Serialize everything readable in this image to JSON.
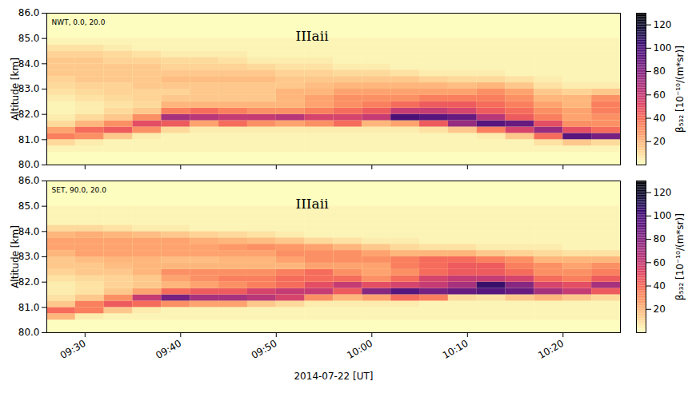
{
  "chart_data": [
    {
      "type": "heatmap",
      "panel_label": "NWT, 0.0, 20.0",
      "annotation": "IIIaii",
      "ylabel": "Altitude [km]",
      "tick_labels": "y",
      "xlim": [
        "2014-07-22T09:26:00Z",
        "2014-07-22T10:26:00Z"
      ],
      "xticks": [
        {
          "value": "2014-07-22T09:30:00Z",
          "label": "09:30"
        },
        {
          "value": "2014-07-22T09:40:00Z",
          "label": "09:40"
        },
        {
          "value": "2014-07-22T09:50:00Z",
          "label": "09:50"
        },
        {
          "value": "2014-07-22T10:00:00Z",
          "label": "10:00"
        },
        {
          "value": "2014-07-22T10:10:00Z",
          "label": "10:10"
        },
        {
          "value": "2014-07-22T10:20:00Z",
          "label": "10:20"
        }
      ],
      "ylim": [
        80,
        86
      ],
      "yticks": [
        80,
        81,
        82,
        83,
        84,
        85,
        86
      ],
      "colorbar": {
        "label": "β₅₃₂ [10⁻¹⁰/(m*sr)]",
        "lim": [
          0,
          130
        ],
        "ticks": [
          20,
          40,
          60,
          80,
          100,
          120
        ]
      },
      "cells": {
        "x_edges": [
          "2014-07-22T09:26:00Z",
          "2014-07-22T09:29:00Z",
          "2014-07-22T09:32:00Z",
          "2014-07-22T09:35:00Z",
          "2014-07-22T09:38:00Z",
          "2014-07-22T09:41:00Z",
          "2014-07-22T09:44:00Z",
          "2014-07-22T09:47:00Z",
          "2014-07-22T09:50:00Z",
          "2014-07-22T09:53:00Z",
          "2014-07-22T09:56:00Z",
          "2014-07-22T09:59:00Z",
          "2014-07-22T10:02:00Z",
          "2014-07-22T10:05:00Z",
          "2014-07-22T10:08:00Z",
          "2014-07-22T10:11:00Z",
          "2014-07-22T10:14:00Z",
          "2014-07-22T10:17:00Z",
          "2014-07-22T10:20:00Z",
          "2014-07-22T10:23:00Z",
          "2014-07-22T10:26:00Z"
        ],
        "y_edges": [
          80.5,
          80.75,
          81.0,
          81.25,
          81.5,
          81.75,
          82.0,
          82.25,
          82.5,
          82.75,
          83.0,
          83.25,
          83.5,
          83.75,
          84.0,
          84.25,
          84.5,
          84.75,
          85.0
        ],
        "values": [
          [
            3,
            3,
            3,
            3,
            3,
            3,
            3,
            3,
            3,
            3,
            3,
            3,
            3,
            3,
            3,
            3,
            3,
            3,
            3,
            3
          ],
          [
            10,
            5,
            3,
            3,
            3,
            3,
            3,
            3,
            3,
            3,
            3,
            3,
            3,
            3,
            3,
            3,
            3,
            8,
            15,
            10
          ],
          [
            35,
            30,
            15,
            5,
            3,
            3,
            3,
            3,
            3,
            3,
            3,
            3,
            3,
            3,
            3,
            5,
            15,
            40,
            95,
            85
          ],
          [
            25,
            40,
            45,
            30,
            10,
            5,
            5,
            5,
            5,
            5,
            5,
            5,
            5,
            8,
            15,
            35,
            55,
            75,
            50,
            40
          ],
          [
            10,
            20,
            30,
            50,
            45,
            25,
            40,
            30,
            25,
            30,
            40,
            20,
            25,
            45,
            75,
            95,
            90,
            50,
            30,
            30
          ],
          [
            5,
            10,
            15,
            30,
            70,
            65,
            60,
            60,
            65,
            55,
            55,
            60,
            100,
            95,
            90,
            65,
            45,
            35,
            25,
            30
          ],
          [
            3,
            5,
            10,
            15,
            35,
            40,
            35,
            30,
            30,
            35,
            40,
            45,
            60,
            60,
            55,
            45,
            40,
            30,
            25,
            35
          ],
          [
            3,
            5,
            8,
            10,
            20,
            20,
            20,
            20,
            20,
            25,
            30,
            35,
            40,
            45,
            45,
            40,
            35,
            25,
            20,
            35
          ],
          [
            5,
            8,
            10,
            12,
            15,
            15,
            15,
            15,
            20,
            25,
            30,
            30,
            30,
            35,
            35,
            35,
            30,
            20,
            20,
            30
          ],
          [
            8,
            10,
            12,
            12,
            12,
            15,
            15,
            15,
            20,
            20,
            25,
            25,
            25,
            25,
            25,
            30,
            25,
            15,
            12,
            15
          ],
          [
            10,
            12,
            12,
            15,
            15,
            15,
            15,
            15,
            15,
            18,
            20,
            20,
            20,
            20,
            18,
            20,
            15,
            8,
            5,
            5
          ],
          [
            12,
            15,
            15,
            15,
            18,
            18,
            18,
            18,
            15,
            15,
            15,
            15,
            15,
            12,
            10,
            10,
            8,
            5,
            3,
            3
          ],
          [
            15,
            15,
            15,
            15,
            15,
            15,
            15,
            15,
            12,
            12,
            10,
            10,
            8,
            5,
            5,
            5,
            3,
            3,
            3,
            3
          ],
          [
            15,
            15,
            15,
            15,
            12,
            12,
            12,
            10,
            8,
            8,
            5,
            5,
            3,
            3,
            3,
            3,
            3,
            3,
            3,
            3
          ],
          [
            15,
            15,
            12,
            12,
            10,
            10,
            8,
            5,
            5,
            5,
            3,
            3,
            3,
            3,
            3,
            3,
            3,
            3,
            3,
            3
          ],
          [
            12,
            12,
            10,
            8,
            5,
            5,
            5,
            3,
            3,
            3,
            3,
            3,
            3,
            3,
            3,
            3,
            3,
            3,
            3,
            3
          ],
          [
            8,
            8,
            5,
            3,
            3,
            3,
            3,
            3,
            3,
            3,
            3,
            3,
            3,
            3,
            3,
            3,
            3,
            3,
            3,
            3
          ],
          [
            3,
            3,
            3,
            3,
            3,
            3,
            3,
            3,
            3,
            3,
            3,
            3,
            3,
            3,
            3,
            3,
            3,
            3,
            3,
            3
          ]
        ]
      }
    },
    {
      "type": "heatmap",
      "panel_label": "SET, 90.0, 20.0",
      "annotation": "IIIaii",
      "ylabel": "Altitude [km]",
      "xlabel": "2014-07-22 [UT]",
      "xlim": [
        "2014-07-22T09:26:00Z",
        "2014-07-22T10:26:00Z"
      ],
      "xticks": [
        {
          "value": "2014-07-22T09:30:00Z",
          "label": "09:30"
        },
        {
          "value": "2014-07-22T09:40:00Z",
          "label": "09:40"
        },
        {
          "value": "2014-07-22T09:50:00Z",
          "label": "09:50"
        },
        {
          "value": "2014-07-22T10:00:00Z",
          "label": "10:00"
        },
        {
          "value": "2014-07-22T10:10:00Z",
          "label": "10:10"
        },
        {
          "value": "2014-07-22T10:20:00Z",
          "label": "10:20"
        }
      ],
      "ylim": [
        80,
        86
      ],
      "yticks": [
        80,
        81,
        82,
        83,
        84,
        85,
        86
      ],
      "colorbar": {
        "label": "β₅₃₂ [10⁻¹⁰/(m*sr)]",
        "lim": [
          0,
          130
        ],
        "ticks": [
          20,
          40,
          60,
          80,
          100,
          120
        ]
      },
      "cells": {
        "x_edges": [
          "2014-07-22T09:26:00Z",
          "2014-07-22T09:29:00Z",
          "2014-07-22T09:32:00Z",
          "2014-07-22T09:35:00Z",
          "2014-07-22T09:38:00Z",
          "2014-07-22T09:41:00Z",
          "2014-07-22T09:44:00Z",
          "2014-07-22T09:47:00Z",
          "2014-07-22T09:50:00Z",
          "2014-07-22T09:53:00Z",
          "2014-07-22T09:56:00Z",
          "2014-07-22T09:59:00Z",
          "2014-07-22T10:02:00Z",
          "2014-07-22T10:05:00Z",
          "2014-07-22T10:08:00Z",
          "2014-07-22T10:11:00Z",
          "2014-07-22T10:14:00Z",
          "2014-07-22T10:17:00Z",
          "2014-07-22T10:20:00Z",
          "2014-07-22T10:23:00Z",
          "2014-07-22T10:26:00Z"
        ],
        "y_edges": [
          80.5,
          80.75,
          81.0,
          81.25,
          81.5,
          81.75,
          82.0,
          82.25,
          82.5,
          82.75,
          83.0,
          83.25,
          83.5,
          83.75,
          84.0,
          84.25,
          84.5,
          84.75,
          85.0
        ],
        "values": [
          [
            20,
            5,
            3,
            3,
            3,
            3,
            3,
            3,
            3,
            3,
            3,
            3,
            3,
            3,
            3,
            3,
            3,
            3,
            3,
            3
          ],
          [
            40,
            35,
            15,
            5,
            3,
            3,
            3,
            3,
            3,
            3,
            3,
            3,
            3,
            3,
            3,
            3,
            3,
            3,
            3,
            3
          ],
          [
            15,
            35,
            45,
            40,
            30,
            25,
            25,
            15,
            10,
            5,
            5,
            5,
            5,
            3,
            3,
            3,
            3,
            3,
            3,
            3
          ],
          [
            8,
            15,
            30,
            60,
            85,
            70,
            70,
            65,
            55,
            30,
            20,
            25,
            40,
            35,
            10,
            8,
            15,
            20,
            15,
            10
          ],
          [
            5,
            8,
            15,
            25,
            40,
            45,
            45,
            55,
            60,
            60,
            45,
            80,
            95,
            85,
            90,
            95,
            90,
            70,
            60,
            45
          ],
          [
            5,
            8,
            12,
            15,
            20,
            25,
            30,
            35,
            40,
            50,
            60,
            50,
            55,
            60,
            70,
            105,
            80,
            55,
            50,
            70
          ],
          [
            8,
            10,
            12,
            15,
            25,
            30,
            35,
            35,
            40,
            40,
            40,
            30,
            40,
            55,
            60,
            60,
            55,
            40,
            35,
            45
          ],
          [
            12,
            15,
            15,
            20,
            30,
            30,
            30,
            30,
            35,
            40,
            30,
            25,
            30,
            40,
            45,
            45,
            40,
            30,
            30,
            35
          ],
          [
            15,
            15,
            18,
            20,
            20,
            20,
            20,
            20,
            20,
            25,
            25,
            25,
            35,
            40,
            45,
            45,
            35,
            30,
            25,
            30
          ],
          [
            15,
            18,
            20,
            20,
            18,
            18,
            20,
            20,
            25,
            30,
            30,
            30,
            35,
            40,
            40,
            35,
            30,
            20,
            20,
            20
          ],
          [
            20,
            25,
            25,
            25,
            25,
            25,
            25,
            25,
            30,
            30,
            30,
            25,
            20,
            20,
            20,
            15,
            12,
            10,
            8,
            8
          ],
          [
            25,
            25,
            25,
            25,
            25,
            25,
            28,
            30,
            28,
            25,
            20,
            15,
            10,
            8,
            8,
            5,
            5,
            5,
            3,
            3
          ],
          [
            25,
            25,
            25,
            25,
            25,
            22,
            20,
            18,
            15,
            10,
            8,
            5,
            5,
            3,
            3,
            3,
            3,
            3,
            3,
            3
          ],
          [
            20,
            22,
            20,
            18,
            15,
            12,
            10,
            8,
            5,
            3,
            3,
            3,
            3,
            3,
            3,
            3,
            3,
            3,
            3,
            3
          ],
          [
            10,
            10,
            8,
            5,
            5,
            3,
            3,
            3,
            3,
            3,
            3,
            3,
            3,
            3,
            3,
            3,
            3,
            3,
            3,
            3
          ],
          [
            3,
            3,
            3,
            3,
            3,
            3,
            3,
            3,
            3,
            3,
            3,
            3,
            3,
            3,
            3,
            3,
            3,
            3,
            3,
            3
          ],
          [
            3,
            3,
            3,
            3,
            3,
            3,
            3,
            3,
            3,
            3,
            3,
            3,
            3,
            3,
            3,
            3,
            3,
            3,
            3,
            3
          ],
          [
            3,
            3,
            3,
            3,
            3,
            3,
            3,
            3,
            3,
            3,
            3,
            3,
            3,
            3,
            3,
            3,
            3,
            3,
            3,
            3
          ]
        ]
      }
    }
  ]
}
